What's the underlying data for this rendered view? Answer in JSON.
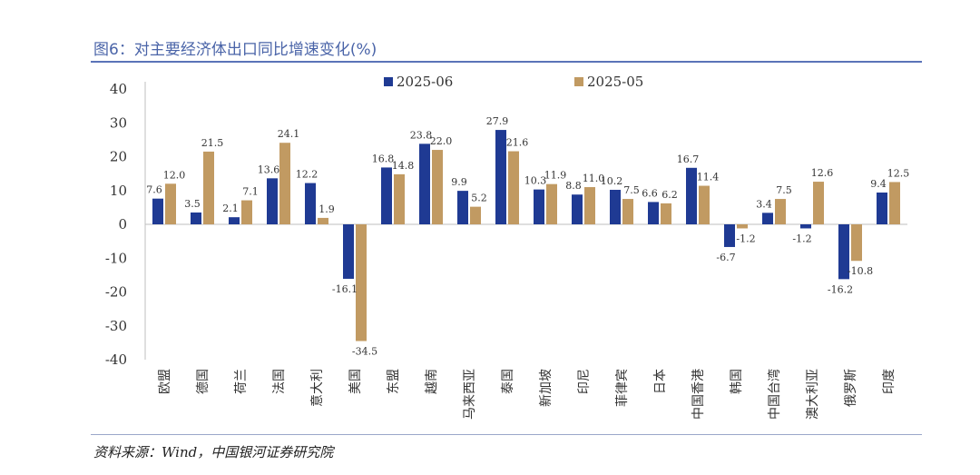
{
  "figure": {
    "title": "图6：对主要经济体出口同比增速变化(%)",
    "source": "资料来源：Wind，中国银河证券研究院"
  },
  "colors": {
    "title": "#4a64a8",
    "series_2025_06": "#1f3a93",
    "series_2025_05": "#c19a62",
    "axis": "#bfbfbf",
    "text": "#333333"
  },
  "chart_data": {
    "type": "bar",
    "categories": [
      "欧盟",
      "德国",
      "荷兰",
      "法国",
      "意大利",
      "美国",
      "东盟",
      "越南",
      "马来西亚",
      "泰国",
      "新加坡",
      "印尼",
      "菲律宾",
      "日本",
      "中国香港",
      "韩国",
      "中国台湾",
      "澳大利亚",
      "俄罗斯",
      "印度"
    ],
    "series": [
      {
        "name": "2025-06",
        "values": [
          7.6,
          3.5,
          2.1,
          13.6,
          12.2,
          -16.1,
          16.8,
          23.8,
          9.9,
          27.9,
          10.3,
          8.8,
          10.2,
          6.6,
          16.7,
          -6.7,
          3.4,
          -1.2,
          -16.2,
          9.4
        ]
      },
      {
        "name": "2025-05",
        "values": [
          12.0,
          21.5,
          7.1,
          24.1,
          1.9,
          -34.5,
          14.8,
          22.0,
          5.2,
          21.6,
          11.9,
          11.0,
          7.5,
          6.2,
          11.4,
          -1.2,
          7.5,
          12.6,
          -10.8,
          12.5
        ]
      }
    ],
    "ylim": [
      -40,
      40
    ],
    "yticks": [
      40,
      30,
      20,
      10,
      0,
      -10,
      -20,
      -30,
      -40
    ],
    "legend_position": "top-center",
    "grid": false
  }
}
